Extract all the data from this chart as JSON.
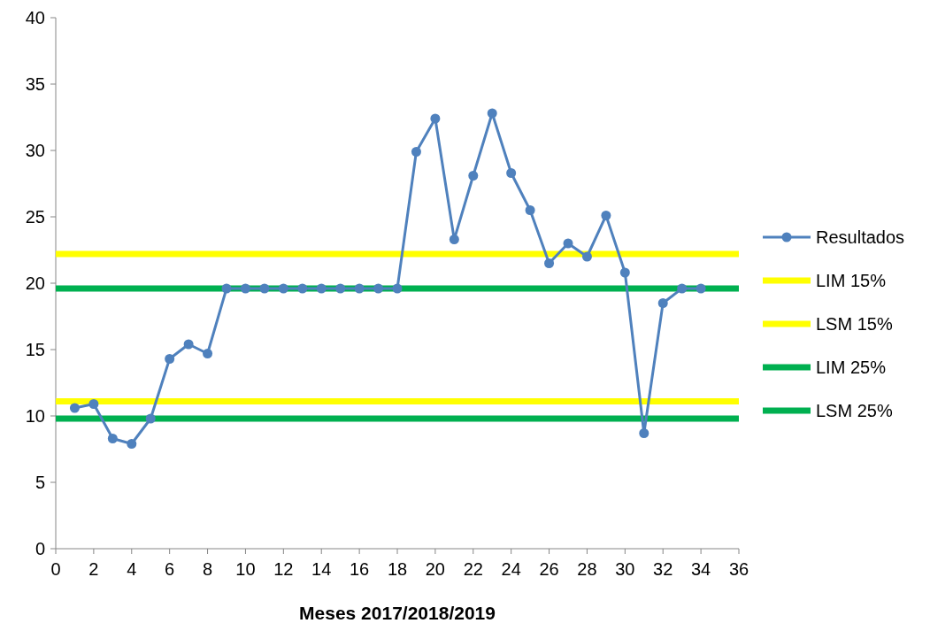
{
  "chart_data": {
    "type": "line",
    "xlabel": "Meses 2017/2018/2019",
    "xlim": [
      0,
      36
    ],
    "xticks": [
      0,
      2,
      4,
      6,
      8,
      10,
      12,
      14,
      16,
      18,
      20,
      22,
      24,
      26,
      28,
      30,
      32,
      34,
      36
    ],
    "ylim": [
      0,
      40
    ],
    "yticks": [
      0,
      5,
      10,
      15,
      20,
      25,
      30,
      35,
      40
    ],
    "legend": "right",
    "series": [
      {
        "name": "Resultados",
        "color": "#4f81bd",
        "marker": "circle",
        "x": [
          1,
          2,
          3,
          4,
          5,
          6,
          7,
          8,
          9,
          10,
          11,
          12,
          13,
          14,
          15,
          16,
          17,
          18,
          19,
          20,
          21,
          22,
          23,
          24,
          25,
          26,
          27,
          28,
          29,
          30,
          31,
          32,
          33,
          34
        ],
        "values": [
          10.6,
          10.9,
          8.3,
          7.9,
          9.8,
          14.3,
          15.4,
          14.7,
          19.6,
          19.6,
          19.6,
          19.6,
          19.6,
          19.6,
          19.6,
          19.6,
          19.6,
          19.6,
          29.9,
          32.4,
          23.3,
          28.1,
          32.8,
          28.3,
          25.5,
          21.5,
          23.0,
          22.0,
          25.1,
          20.8,
          8.7,
          18.5,
          19.6,
          19.6
        ]
      },
      {
        "name": "LIM 15%",
        "color": "#ffff00",
        "marker": "none",
        "x": [
          0,
          36
        ],
        "values": [
          11.1,
          11.1
        ]
      },
      {
        "name": "LSM 15%",
        "color": "#ffff00",
        "marker": "none",
        "x": [
          0,
          36
        ],
        "values": [
          22.2,
          22.2
        ]
      },
      {
        "name": "LIM 25%",
        "color": "#00b050",
        "marker": "none",
        "x": [
          0,
          36
        ],
        "values": [
          9.8,
          9.8
        ]
      },
      {
        "name": "LSM 25%",
        "color": "#00b050",
        "marker": "none",
        "x": [
          0,
          36
        ],
        "values": [
          19.6,
          19.6
        ]
      }
    ]
  }
}
